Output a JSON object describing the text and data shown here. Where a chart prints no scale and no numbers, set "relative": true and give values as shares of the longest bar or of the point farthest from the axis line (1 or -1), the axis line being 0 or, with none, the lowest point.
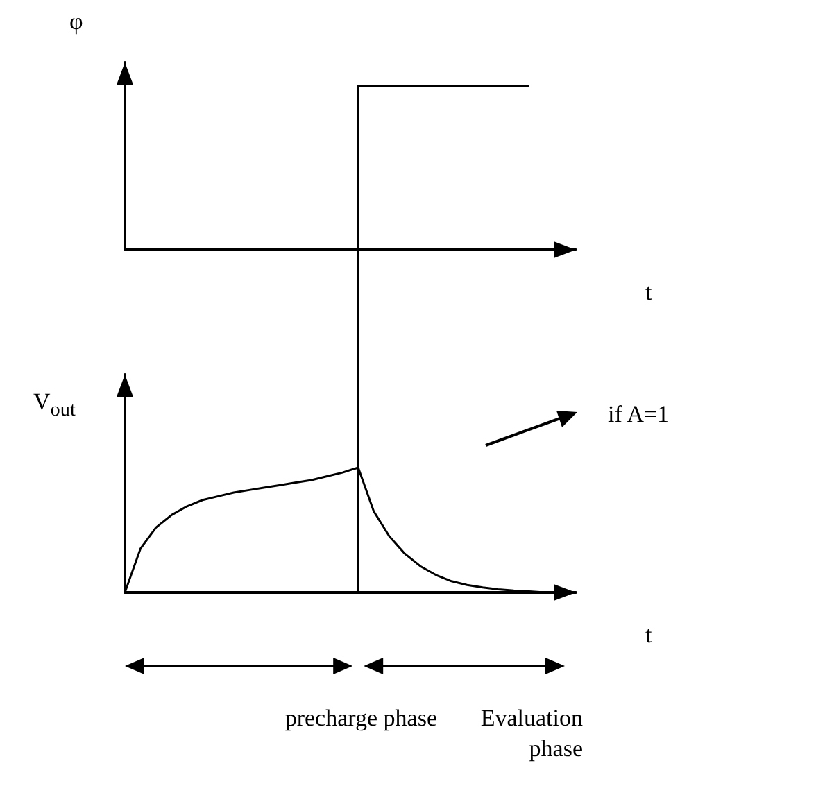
{
  "chart_data": [
    {
      "type": "step",
      "relative": true,
      "ylabel": "φ",
      "xlabel": "t",
      "categories": [
        null,
        null,
        null,
        null,
        null,
        null,
        null,
        null,
        null,
        null,
        null,
        null,
        null,
        null,
        null,
        null,
        null,
        null,
        null,
        null,
        null,
        null,
        null,
        null,
        null,
        null,
        null,
        null,
        null,
        null
      ],
      "series": [
        {
          "color": "#000000",
          "values": [
            null,
            null,
            null,
            null,
            null,
            null,
            null,
            null,
            null,
            null,
            null,
            null,
            null,
            null,
            0,
            1,
            1,
            1,
            1,
            1,
            1,
            1,
            1,
            1,
            1,
            1,
            null,
            null,
            null,
            null
          ]
        }
      ]
    },
    {
      "type": "line",
      "relative": true,
      "ylabel": "V$_{out}$",
      "xlabel": "t",
      "categories": [
        null,
        null,
        null,
        null,
        null,
        null,
        null,
        null,
        null,
        null,
        null,
        null,
        null,
        null,
        null,
        null,
        null,
        null,
        null,
        null,
        null,
        null,
        null,
        null,
        null,
        null,
        null,
        null,
        null,
        null
      ],
      "series": [
        {
          "color": "#000000",
          "values": [
            0,
            0.35,
            0.52,
            0.62,
            0.69,
            0.74,
            0.77,
            0.8,
            0.82,
            0.84,
            0.86,
            0.88,
            0.9,
            0.93,
            0.96,
            1,
            0.65,
            0.45,
            0.31,
            0.21,
            0.14,
            0.09,
            0.06,
            0.04,
            0.025,
            0.015,
            0.008,
            0,
            null,
            null
          ]
        }
      ],
      "annotations": [
        "if A=1",
        "precharge phase",
        "Evaluation phase"
      ]
    }
  ]
}
